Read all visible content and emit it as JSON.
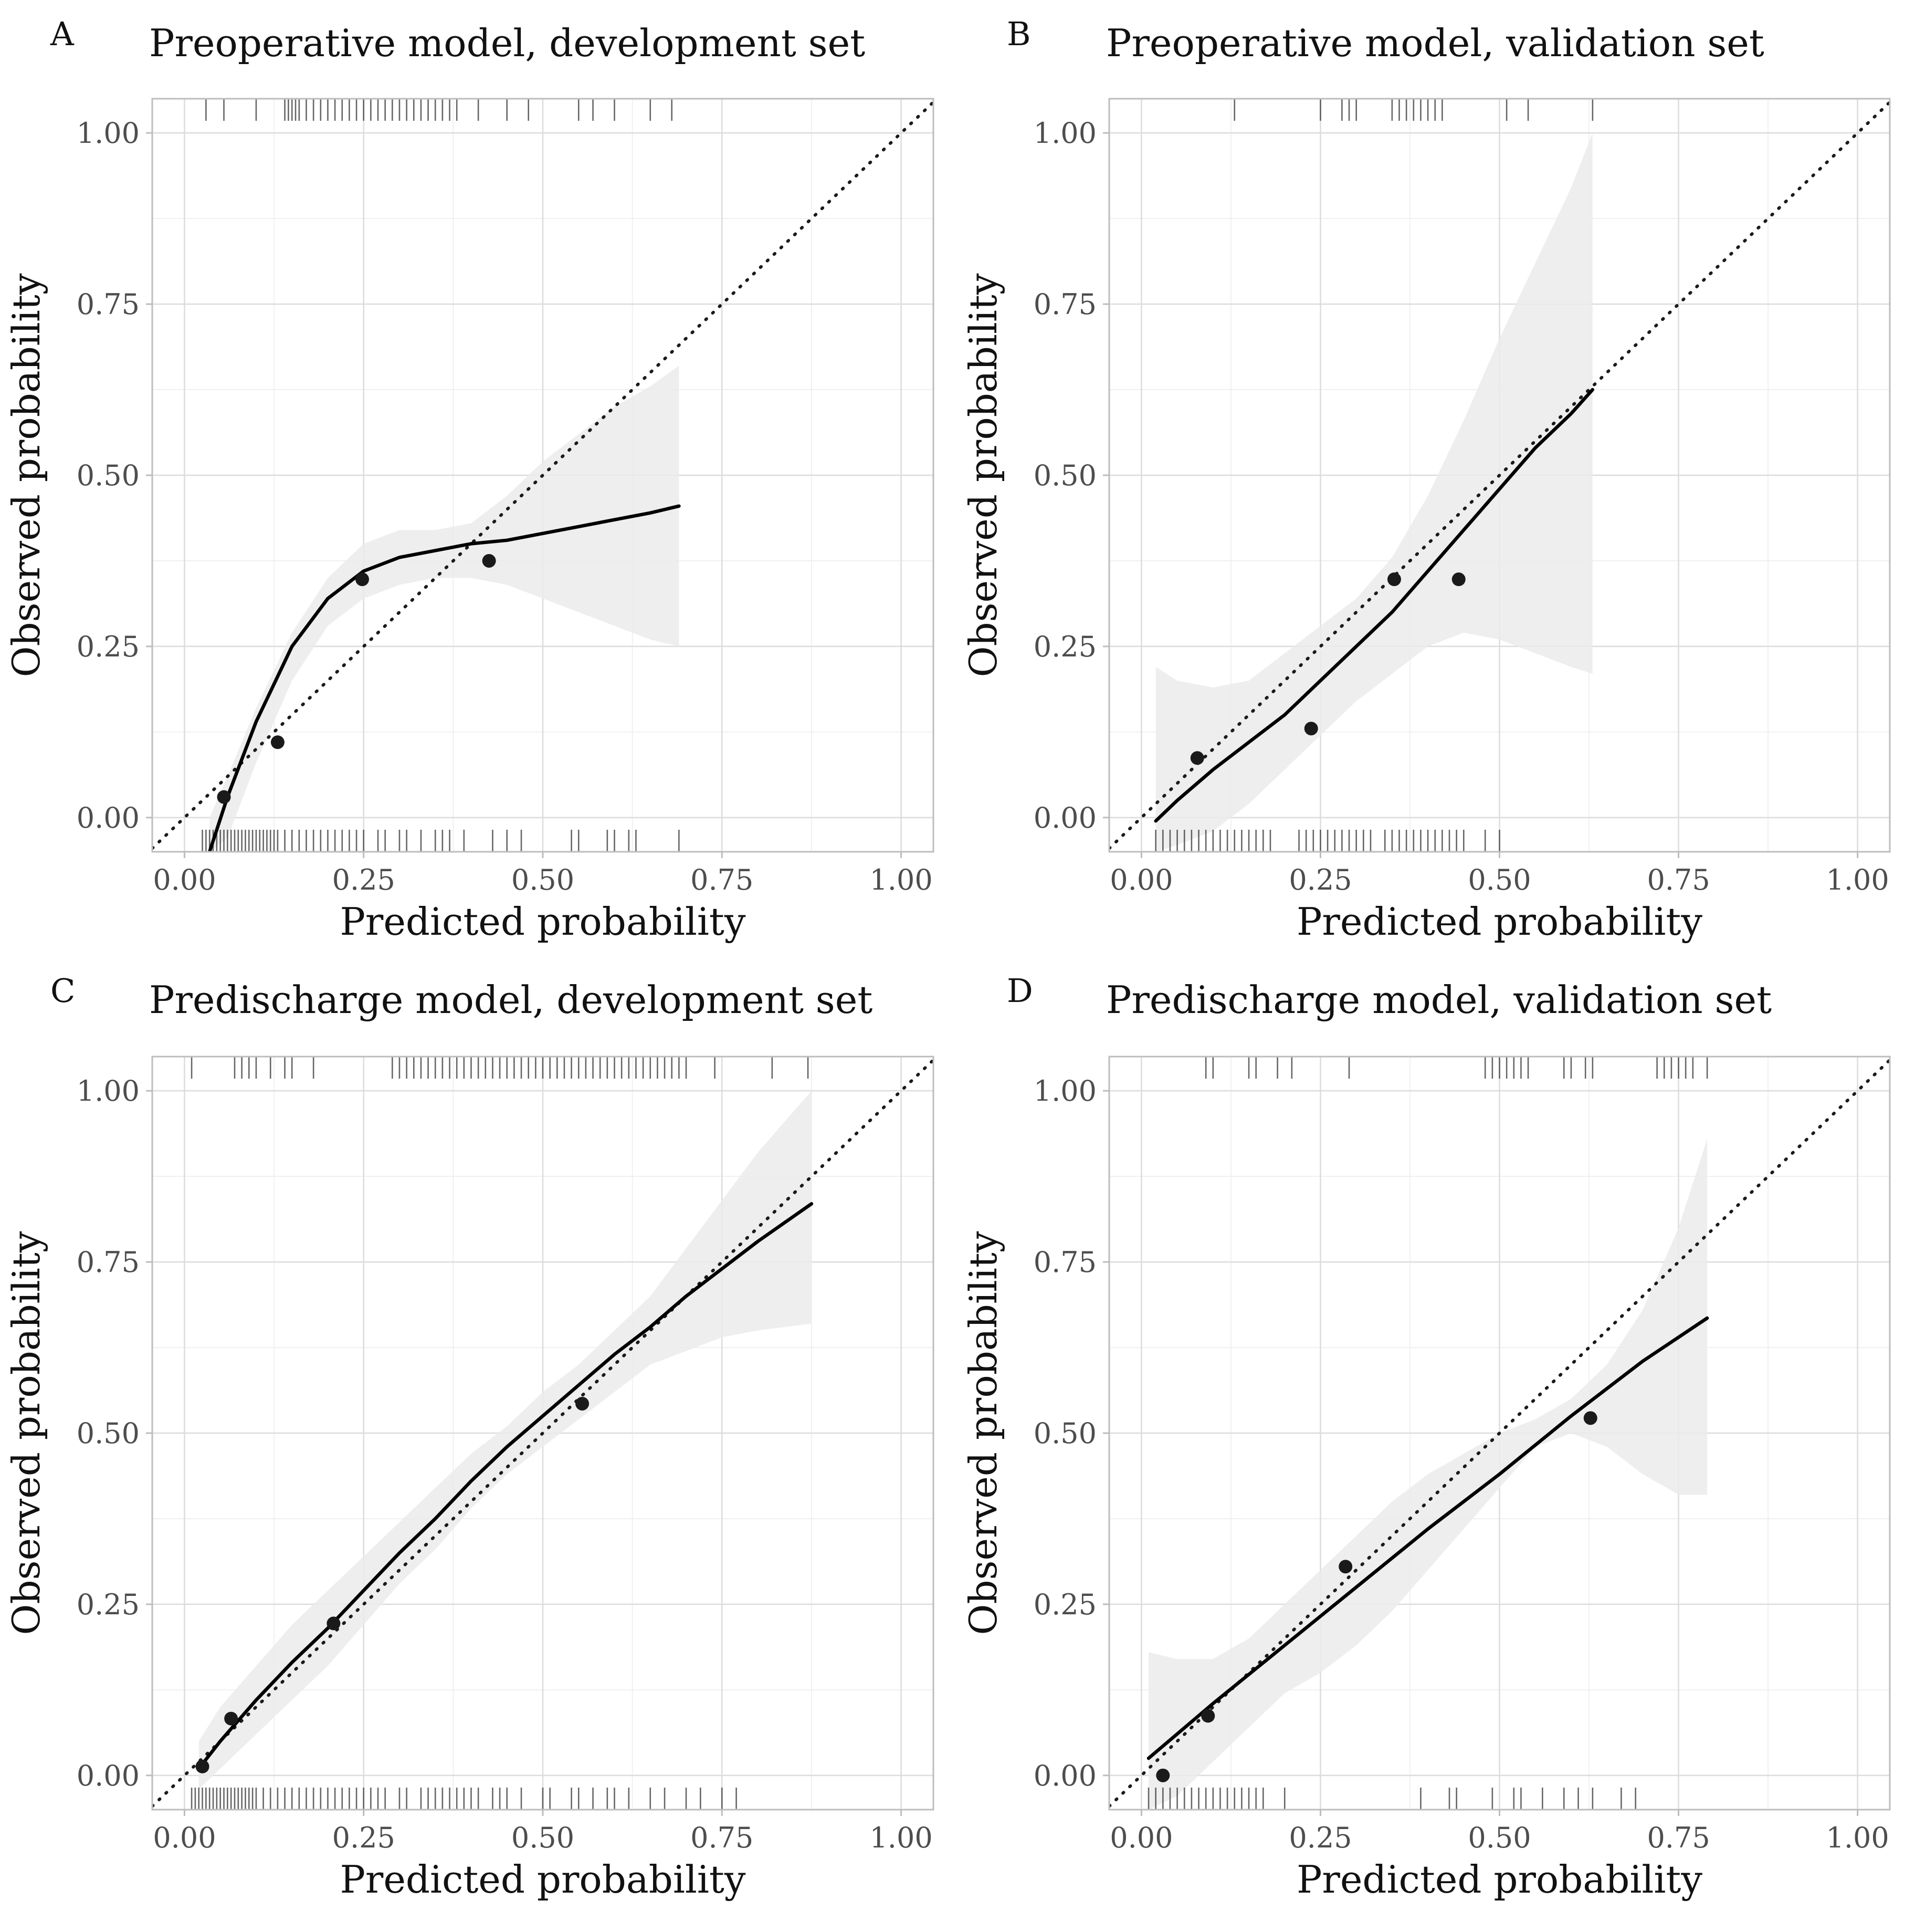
{
  "chart_data": [
    {
      "type": "line",
      "panel": "A",
      "title": "Preoperative model, development set",
      "xlabel": "Predicted probability",
      "ylabel": "Observed probability",
      "xlim": [
        -0.045,
        1.045
      ],
      "ylim": [
        -0.05,
        1.05
      ],
      "xticks": [
        "0.00",
        "0.25",
        "0.50",
        "0.75",
        "1.00"
      ],
      "yticks": [
        "0.00",
        "0.25",
        "0.50",
        "0.75",
        "1.00"
      ],
      "grid": true,
      "reference_line": "y = x (dotted)",
      "series": [
        {
          "name": "calibration curve",
          "x": [
            0.035,
            0.06,
            0.1,
            0.15,
            0.2,
            0.25,
            0.3,
            0.35,
            0.4,
            0.45,
            0.5,
            0.55,
            0.6,
            0.65,
            0.69
          ],
          "y": [
            -0.05,
            0.03,
            0.14,
            0.25,
            0.32,
            0.36,
            0.38,
            0.39,
            0.4,
            0.405,
            0.415,
            0.425,
            0.435,
            0.445,
            0.455
          ]
        },
        {
          "name": "confidence band upper",
          "x": [
            0.035,
            0.06,
            0.1,
            0.15,
            0.2,
            0.25,
            0.3,
            0.35,
            0.4,
            0.45,
            0.5,
            0.55,
            0.6,
            0.65,
            0.69
          ],
          "y": [
            0.0,
            0.06,
            0.16,
            0.27,
            0.35,
            0.4,
            0.42,
            0.42,
            0.43,
            0.47,
            0.52,
            0.56,
            0.6,
            0.63,
            0.66
          ]
        },
        {
          "name": "confidence band lower",
          "x": [
            0.035,
            0.06,
            0.1,
            0.15,
            0.2,
            0.25,
            0.3,
            0.35,
            0.4,
            0.45,
            0.5,
            0.55,
            0.6,
            0.65,
            0.69
          ],
          "y": [
            -0.05,
            -0.03,
            0.08,
            0.2,
            0.28,
            0.32,
            0.34,
            0.35,
            0.35,
            0.34,
            0.32,
            0.3,
            0.28,
            0.26,
            0.25
          ]
        },
        {
          "name": "grouped observations",
          "x": [
            0.055,
            0.13,
            0.248,
            0.425
          ],
          "y": [
            0.03,
            0.11,
            0.348,
            0.375
          ]
        }
      ],
      "rug_events": [
        0.03,
        0.055,
        0.1,
        0.14,
        0.145,
        0.15,
        0.155,
        0.16,
        0.17,
        0.18,
        0.19,
        0.2,
        0.21,
        0.22,
        0.23,
        0.24,
        0.25,
        0.26,
        0.27,
        0.28,
        0.29,
        0.3,
        0.31,
        0.32,
        0.33,
        0.34,
        0.35,
        0.36,
        0.37,
        0.38,
        0.41,
        0.45,
        0.48,
        0.55,
        0.57,
        0.6,
        0.65,
        0.68
      ],
      "rug_nonevents": [
        0.025,
        0.03,
        0.035,
        0.04,
        0.045,
        0.05,
        0.055,
        0.06,
        0.065,
        0.07,
        0.075,
        0.08,
        0.085,
        0.09,
        0.095,
        0.1,
        0.105,
        0.11,
        0.115,
        0.12,
        0.125,
        0.13,
        0.14,
        0.15,
        0.16,
        0.17,
        0.18,
        0.19,
        0.2,
        0.21,
        0.22,
        0.23,
        0.24,
        0.25,
        0.27,
        0.28,
        0.3,
        0.31,
        0.33,
        0.35,
        0.36,
        0.37,
        0.39,
        0.43,
        0.45,
        0.47,
        0.54,
        0.55,
        0.59,
        0.6,
        0.62,
        0.63,
        0.69
      ]
    },
    {
      "type": "line",
      "panel": "B",
      "title": "Preoperative model, validation set",
      "xlabel": "Predicted probability",
      "ylabel": "Observed probability",
      "xlim": [
        -0.045,
        1.045
      ],
      "ylim": [
        -0.05,
        1.05
      ],
      "xticks": [
        "0.00",
        "0.25",
        "0.50",
        "0.75",
        "1.00"
      ],
      "yticks": [
        "0.00",
        "0.25",
        "0.50",
        "0.75",
        "1.00"
      ],
      "grid": true,
      "reference_line": "y = x (dotted)",
      "series": [
        {
          "name": "calibration curve",
          "x": [
            0.02,
            0.05,
            0.1,
            0.15,
            0.2,
            0.25,
            0.3,
            0.35,
            0.4,
            0.45,
            0.5,
            0.55,
            0.6,
            0.63
          ],
          "y": [
            -0.005,
            0.025,
            0.07,
            0.11,
            0.15,
            0.2,
            0.25,
            0.3,
            0.36,
            0.42,
            0.48,
            0.54,
            0.59,
            0.625
          ]
        },
        {
          "name": "confidence band upper",
          "x": [
            0.02,
            0.05,
            0.1,
            0.15,
            0.2,
            0.25,
            0.3,
            0.35,
            0.4,
            0.45,
            0.5,
            0.55,
            0.6,
            0.63
          ],
          "y": [
            0.22,
            0.2,
            0.19,
            0.2,
            0.24,
            0.28,
            0.32,
            0.38,
            0.47,
            0.58,
            0.7,
            0.81,
            0.92,
            1.0
          ]
        },
        {
          "name": "confidence band lower",
          "x": [
            0.02,
            0.05,
            0.1,
            0.15,
            0.2,
            0.25,
            0.3,
            0.35,
            0.4,
            0.45,
            0.5,
            0.55,
            0.6,
            0.63
          ],
          "y": [
            -0.05,
            -0.04,
            -0.02,
            0.02,
            0.07,
            0.12,
            0.17,
            0.21,
            0.25,
            0.27,
            0.26,
            0.24,
            0.22,
            0.21
          ]
        },
        {
          "name": "grouped observations",
          "x": [
            0.078,
            0.237,
            0.353,
            0.443
          ],
          "y": [
            0.087,
            0.13,
            0.348,
            0.348
          ]
        }
      ],
      "rug_events": [
        0.13,
        0.25,
        0.28,
        0.29,
        0.3,
        0.35,
        0.36,
        0.37,
        0.38,
        0.39,
        0.4,
        0.41,
        0.42,
        0.51,
        0.54,
        0.63
      ],
      "rug_nonevents": [
        0.02,
        0.03,
        0.04,
        0.05,
        0.06,
        0.07,
        0.08,
        0.09,
        0.1,
        0.11,
        0.12,
        0.13,
        0.14,
        0.15,
        0.16,
        0.17,
        0.18,
        0.22,
        0.23,
        0.24,
        0.25,
        0.26,
        0.27,
        0.28,
        0.29,
        0.3,
        0.31,
        0.32,
        0.34,
        0.35,
        0.36,
        0.37,
        0.38,
        0.39,
        0.4,
        0.41,
        0.42,
        0.43,
        0.44,
        0.45,
        0.48,
        0.5
      ]
    },
    {
      "type": "line",
      "panel": "C",
      "title": "Predischarge model, development set",
      "xlabel": "Predicted probability",
      "ylabel": "Observed probability",
      "xlim": [
        -0.045,
        1.045
      ],
      "ylim": [
        -0.05,
        1.05
      ],
      "xticks": [
        "0.00",
        "0.25",
        "0.50",
        "0.75",
        "1.00"
      ],
      "yticks": [
        "0.00",
        "0.25",
        "0.50",
        "0.75",
        "1.00"
      ],
      "grid": true,
      "reference_line": "y = x (dotted)",
      "series": [
        {
          "name": "calibration curve",
          "x": [
            0.02,
            0.05,
            0.1,
            0.15,
            0.2,
            0.25,
            0.3,
            0.35,
            0.4,
            0.45,
            0.5,
            0.55,
            0.6,
            0.65,
            0.7,
            0.75,
            0.8,
            0.875
          ],
          "y": [
            0.01,
            0.05,
            0.11,
            0.165,
            0.215,
            0.27,
            0.325,
            0.375,
            0.43,
            0.48,
            0.525,
            0.57,
            0.615,
            0.655,
            0.7,
            0.74,
            0.78,
            0.835
          ]
        },
        {
          "name": "confidence band upper",
          "x": [
            0.02,
            0.05,
            0.1,
            0.15,
            0.2,
            0.25,
            0.3,
            0.35,
            0.4,
            0.45,
            0.5,
            0.55,
            0.6,
            0.65,
            0.7,
            0.75,
            0.8,
            0.875
          ],
          "y": [
            0.05,
            0.1,
            0.16,
            0.22,
            0.27,
            0.32,
            0.37,
            0.42,
            0.47,
            0.51,
            0.56,
            0.6,
            0.65,
            0.7,
            0.77,
            0.84,
            0.91,
            1.0
          ]
        },
        {
          "name": "confidence band lower",
          "x": [
            0.02,
            0.05,
            0.1,
            0.15,
            0.2,
            0.25,
            0.3,
            0.35,
            0.4,
            0.45,
            0.5,
            0.55,
            0.6,
            0.65,
            0.7,
            0.75,
            0.8,
            0.875
          ],
          "y": [
            -0.02,
            0.01,
            0.06,
            0.11,
            0.16,
            0.22,
            0.28,
            0.33,
            0.39,
            0.44,
            0.48,
            0.52,
            0.56,
            0.6,
            0.62,
            0.64,
            0.65,
            0.66
          ]
        },
        {
          "name": "grouped observations",
          "x": [
            0.025,
            0.065,
            0.208,
            0.555
          ],
          "y": [
            0.013,
            0.083,
            0.222,
            0.543
          ]
        }
      ],
      "rug_events": [
        0.01,
        0.07,
        0.08,
        0.09,
        0.1,
        0.12,
        0.14,
        0.15,
        0.18,
        0.29,
        0.3,
        0.31,
        0.32,
        0.33,
        0.34,
        0.35,
        0.36,
        0.37,
        0.38,
        0.39,
        0.4,
        0.41,
        0.42,
        0.43,
        0.44,
        0.45,
        0.46,
        0.47,
        0.48,
        0.49,
        0.5,
        0.51,
        0.52,
        0.53,
        0.54,
        0.55,
        0.56,
        0.57,
        0.58,
        0.59,
        0.6,
        0.61,
        0.62,
        0.63,
        0.64,
        0.65,
        0.66,
        0.67,
        0.68,
        0.69,
        0.7,
        0.74,
        0.82,
        0.87
      ],
      "rug_nonevents": [
        0.01,
        0.015,
        0.02,
        0.025,
        0.03,
        0.035,
        0.04,
        0.045,
        0.05,
        0.055,
        0.06,
        0.065,
        0.07,
        0.075,
        0.08,
        0.085,
        0.09,
        0.095,
        0.1,
        0.11,
        0.12,
        0.13,
        0.14,
        0.15,
        0.16,
        0.17,
        0.18,
        0.19,
        0.2,
        0.21,
        0.22,
        0.23,
        0.24,
        0.25,
        0.26,
        0.27,
        0.28,
        0.3,
        0.31,
        0.33,
        0.34,
        0.35,
        0.36,
        0.37,
        0.38,
        0.39,
        0.4,
        0.41,
        0.43,
        0.44,
        0.45,
        0.47,
        0.5,
        0.51,
        0.54,
        0.55,
        0.57,
        0.59,
        0.6,
        0.62,
        0.65,
        0.67,
        0.7,
        0.72,
        0.75,
        0.77
      ]
    },
    {
      "type": "line",
      "panel": "D",
      "title": "Predischarge model, validation set",
      "xlabel": "Predicted probability",
      "ylabel": "Observed probability",
      "xlim": [
        -0.045,
        1.045
      ],
      "ylim": [
        -0.05,
        1.05
      ],
      "xticks": [
        "0.00",
        "0.25",
        "0.50",
        "0.75",
        "1.00"
      ],
      "yticks": [
        "0.00",
        "0.25",
        "0.50",
        "0.75",
        "1.00"
      ],
      "grid": true,
      "reference_line": "y = x (dotted)",
      "series": [
        {
          "name": "calibration curve",
          "x": [
            0.01,
            0.1,
            0.2,
            0.3,
            0.4,
            0.5,
            0.6,
            0.7,
            0.79
          ],
          "y": [
            0.025,
            0.105,
            0.19,
            0.275,
            0.36,
            0.44,
            0.525,
            0.605,
            0.668
          ]
        },
        {
          "name": "confidence band upper",
          "x": [
            0.01,
            0.05,
            0.1,
            0.15,
            0.2,
            0.25,
            0.3,
            0.35,
            0.4,
            0.45,
            0.5,
            0.55,
            0.6,
            0.65,
            0.7,
            0.75,
            0.79
          ],
          "y": [
            0.18,
            0.17,
            0.17,
            0.2,
            0.25,
            0.3,
            0.35,
            0.4,
            0.44,
            0.47,
            0.5,
            0.52,
            0.55,
            0.6,
            0.68,
            0.8,
            0.93
          ]
        },
        {
          "name": "confidence band lower",
          "x": [
            0.01,
            0.05,
            0.1,
            0.15,
            0.2,
            0.25,
            0.3,
            0.35,
            0.4,
            0.45,
            0.5,
            0.55,
            0.6,
            0.65,
            0.7,
            0.75,
            0.79
          ],
          "y": [
            -0.05,
            -0.03,
            0.02,
            0.07,
            0.12,
            0.15,
            0.19,
            0.24,
            0.3,
            0.36,
            0.42,
            0.48,
            0.5,
            0.48,
            0.44,
            0.41,
            0.41
          ]
        },
        {
          "name": "grouped observations",
          "x": [
            0.03,
            0.093,
            0.285,
            0.627
          ],
          "y": [
            0.0,
            0.087,
            0.305,
            0.522
          ]
        }
      ],
      "rug_events": [
        0.09,
        0.1,
        0.15,
        0.16,
        0.19,
        0.21,
        0.29,
        0.48,
        0.49,
        0.5,
        0.51,
        0.52,
        0.53,
        0.54,
        0.59,
        0.6,
        0.62,
        0.63,
        0.72,
        0.73,
        0.74,
        0.75,
        0.76,
        0.77,
        0.79
      ],
      "rug_nonevents": [
        0.01,
        0.02,
        0.03,
        0.04,
        0.05,
        0.06,
        0.07,
        0.08,
        0.09,
        0.1,
        0.11,
        0.12,
        0.13,
        0.14,
        0.15,
        0.16,
        0.17,
        0.2,
        0.39,
        0.43,
        0.44,
        0.49,
        0.52,
        0.53,
        0.56,
        0.59,
        0.61,
        0.63,
        0.67,
        0.69
      ]
    }
  ]
}
